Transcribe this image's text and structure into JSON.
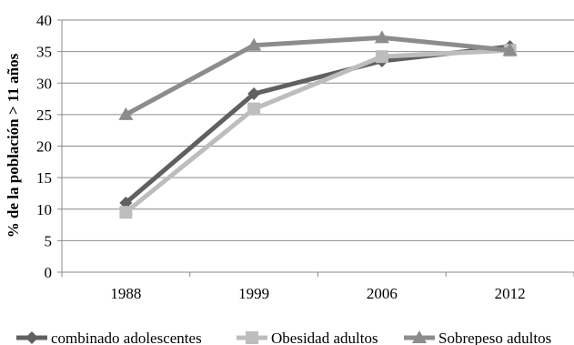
{
  "chart_data": {
    "type": "line",
    "title": "",
    "xlabel": "",
    "ylabel": "% de la población > 11 años",
    "categories": [
      "1988",
      "1999",
      "2006",
      "2012"
    ],
    "ylim": [
      0,
      40
    ],
    "yticks": [
      0,
      5,
      10,
      15,
      20,
      25,
      30,
      35,
      40
    ],
    "grid": "horizontal",
    "legend_position": "bottom",
    "series": [
      {
        "name": "combinado adolescentes",
        "values": [
          11.0,
          28.3,
          33.5,
          35.8
        ],
        "color": "#606060",
        "marker": "diamond"
      },
      {
        "name": "Obesidad adultos",
        "values": [
          9.5,
          25.9,
          34.2,
          35.2
        ],
        "color": "#bdbdbd",
        "marker": "square"
      },
      {
        "name": "Sobrepeso adultos",
        "values": [
          25.0,
          36.0,
          37.2,
          35.2
        ],
        "color": "#8c8c8c",
        "marker": "triangle"
      }
    ]
  }
}
